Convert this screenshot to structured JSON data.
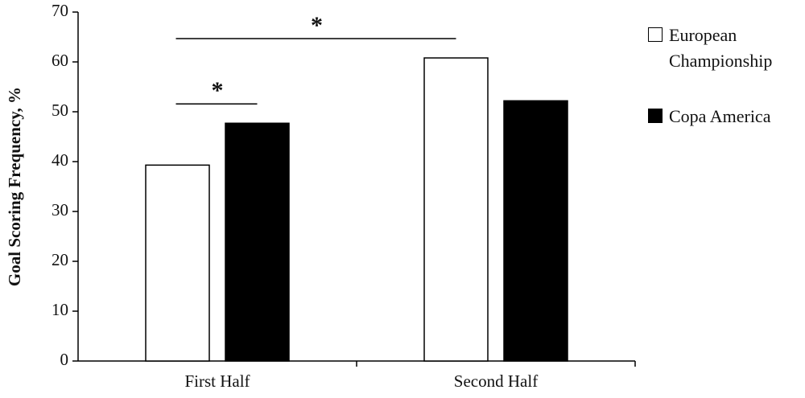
{
  "chart_data": {
    "type": "bar",
    "y_label": "Goal Scoring Frequency, %",
    "categories": [
      "First Half",
      "Second Half"
    ],
    "series": [
      {
        "name": "European Championship",
        "color": "#ffffff",
        "values": [
          39.3,
          60.8
        ]
      },
      {
        "name": "Copa America",
        "color": "#000000",
        "values": [
          47.7,
          52.2
        ]
      }
    ],
    "annotations": [
      "*",
      "*"
    ],
    "ylim": [
      0,
      70
    ],
    "yticks": [
      0,
      10,
      20,
      30,
      40,
      50,
      60,
      70
    ],
    "grid": false
  }
}
